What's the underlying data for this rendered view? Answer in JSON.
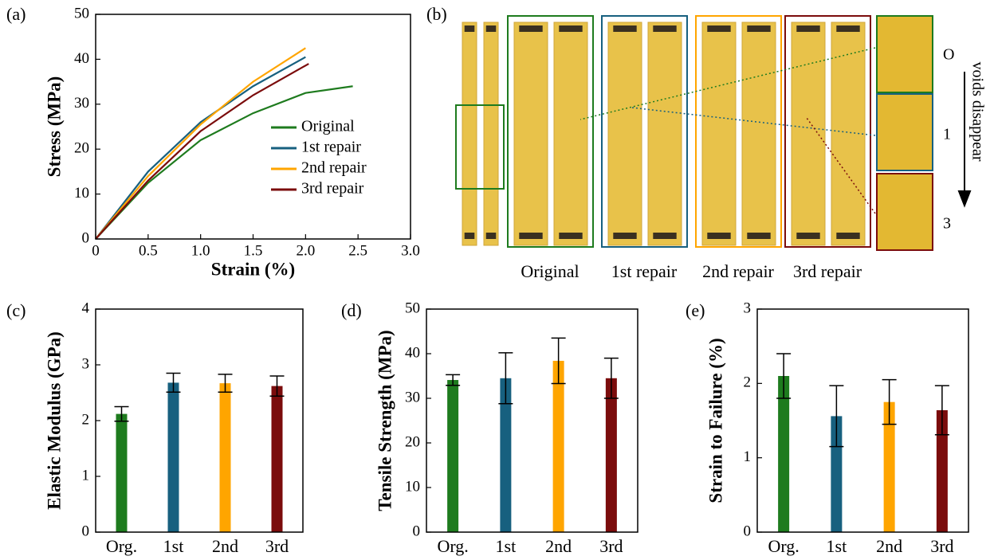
{
  "chart_data": [
    {
      "type": "line",
      "panel_label": "(a)",
      "x_label": "Strain (%)",
      "y_label": "Stress (MPa)",
      "xlim": [
        0,
        3
      ],
      "xticks": [
        0,
        0.5,
        {
          "value": 1,
          "label": "1.0"
        },
        1.5,
        {
          "value": 2,
          "label": "2.0"
        },
        2.5,
        {
          "value": 3,
          "label": "3.0"
        }
      ],
      "ylim": [
        0,
        50
      ],
      "yticks": [
        0,
        10,
        20,
        30,
        40,
        50
      ],
      "series": [
        {
          "name": "Original",
          "color": "#1e7b1e",
          "x": [
            0,
            0.5,
            1.0,
            1.5,
            2.0,
            2.45
          ],
          "values": [
            0,
            12.5,
            22,
            28,
            32.5,
            34
          ]
        },
        {
          "name": "1st repair",
          "color": "#17607f",
          "x": [
            0,
            0.5,
            1.0,
            1.5,
            2.0
          ],
          "values": [
            0,
            15,
            26,
            34,
            40.5
          ]
        },
        {
          "name": "2nd repair",
          "color": "#ffa500",
          "x": [
            0,
            0.5,
            1.0,
            1.5,
            2.0
          ],
          "values": [
            0,
            14,
            25.5,
            35,
            42.5
          ]
        },
        {
          "name": "3rd repair",
          "color": "#7b0c0c",
          "x": [
            0,
            0.5,
            1.0,
            1.5,
            2.03
          ],
          "values": [
            0,
            13,
            24,
            32,
            39
          ]
        }
      ]
    },
    {
      "type": "image",
      "panel_label": "(b)",
      "labels": [
        {
          "text": "Original",
          "color": "#1e7b1e"
        },
        {
          "text": "1st repair",
          "color": "#17607f"
        },
        {
          "text": "2nd repair",
          "color": "#ffa500"
        },
        {
          "text": "3rd repair",
          "color": "#7b0c0c"
        }
      ],
      "inset_labels": [
        {
          "text": "O",
          "color": "#1e7b1e"
        },
        {
          "text": "1",
          "color": "#17607f"
        },
        {
          "text": "3",
          "color": "#7b0c0c"
        }
      ],
      "annotation": "voids disappear"
    },
    {
      "type": "bar",
      "panel_label": "(c)",
      "y_label": "Elastic Modulus (GPa)",
      "categories": [
        "Org.",
        "1st",
        "2nd",
        "3rd"
      ],
      "values": [
        2.12,
        2.68,
        2.67,
        2.62
      ],
      "errors": [
        0.13,
        0.17,
        0.16,
        0.18
      ],
      "colors": [
        "#1e7b1e",
        "#17607f",
        "#ffa500",
        "#7b0c0c"
      ],
      "ylim": [
        0,
        4
      ],
      "yticks": [
        0,
        1,
        2,
        3,
        4
      ]
    },
    {
      "type": "bar",
      "panel_label": "(d)",
      "y_label": "Tensile Strength (MPa)",
      "categories": [
        "Org.",
        "1st",
        "2nd",
        "3rd"
      ],
      "values": [
        34.1,
        34.5,
        38.4,
        34.5
      ],
      "errors": [
        1.2,
        5.7,
        5.1,
        4.5
      ],
      "colors": [
        "#1e7b1e",
        "#17607f",
        "#ffa500",
        "#7b0c0c"
      ],
      "ylim": [
        0,
        50
      ],
      "yticks": [
        0,
        10,
        20,
        30,
        40,
        50
      ]
    },
    {
      "type": "bar",
      "panel_label": "(e)",
      "y_label": "Strain to Failure (%)",
      "categories": [
        "Org.",
        "1st",
        "2nd",
        "3rd"
      ],
      "values": [
        2.1,
        1.56,
        1.75,
        1.64
      ],
      "errors": [
        0.3,
        0.41,
        0.3,
        0.33
      ],
      "colors": [
        "#1e7b1e",
        "#17607f",
        "#ffa500",
        "#7b0c0c"
      ],
      "ylim": [
        0,
        3
      ],
      "yticks": [
        0,
        1,
        2,
        3
      ]
    }
  ]
}
